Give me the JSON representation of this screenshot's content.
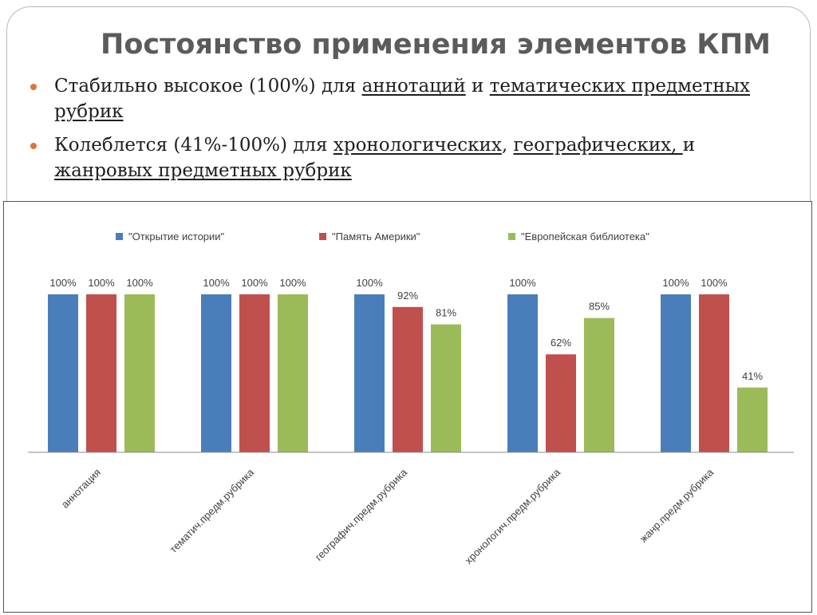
{
  "title": "Постоянство применения элементов КПМ",
  "bullets": [
    {
      "parts": [
        {
          "text": "Стабильно высокое (100%) для ",
          "underline": false
        },
        {
          "text": "аннотаций",
          "underline": true
        },
        {
          "text": " и ",
          "underline": false
        },
        {
          "text": "тематических предметных рубрик",
          "underline": true
        }
      ]
    },
    {
      "parts": [
        {
          "text": "Колеблется (41%-100%) для ",
          "underline": false
        },
        {
          "text": "хронологических",
          "underline": true
        },
        {
          "text": ", ",
          "underline": false
        },
        {
          "text": "географических, ",
          "underline": true
        },
        {
          "text": "и ",
          "underline": false
        },
        {
          "text": "жанровых предметных рубрик",
          "underline": true
        }
      ]
    }
  ],
  "chart_data": {
    "type": "bar",
    "title": "",
    "xlabel": "",
    "ylabel": "",
    "ylim": [
      0,
      100
    ],
    "grid": false,
    "legend_position": "top",
    "categories": [
      "аннотация",
      "тематич.предм.рубрика",
      "географич.предм.рубрика",
      "хронологич.предм.рубрика",
      "жанр.предм.рубрика"
    ],
    "series": [
      {
        "name": "\"Открытие истории\"",
        "color": "#4a7ebb",
        "values": [
          100,
          100,
          100,
          100,
          100
        ],
        "labels": [
          "100%",
          "100%",
          "100%",
          "100%",
          "100%"
        ]
      },
      {
        "name": "\"Память Америки\"",
        "color": "#c0504d",
        "values": [
          100,
          100,
          92,
          62,
          100
        ],
        "labels": [
          "100%",
          "100%",
          "92%",
          "62%",
          "100%"
        ]
      },
      {
        "name": "\"Европейская библиотека\"",
        "color": "#9bbb59",
        "values": [
          100,
          100,
          81,
          85,
          41
        ],
        "labels": [
          "100%",
          "100%",
          "81%",
          "85%",
          "41%"
        ]
      }
    ]
  }
}
